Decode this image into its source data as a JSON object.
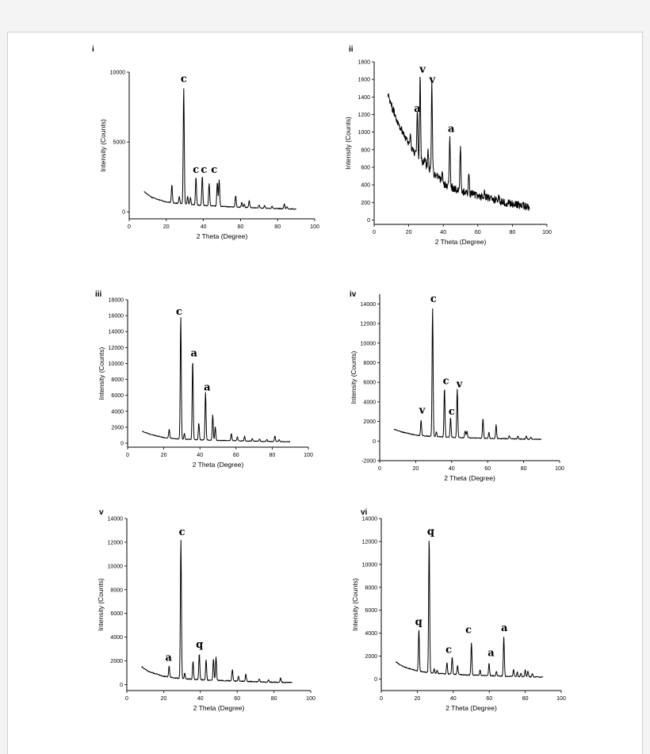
{
  "colors": {
    "trace": "#000000",
    "background": "#ffffff"
  },
  "chart_data": [
    {
      "id": "i",
      "type": "line",
      "panel_label": "i",
      "xlabel": "2 Theta (Degree)",
      "ylabel": "Intensity (Counts)",
      "xlim": [
        0,
        100
      ],
      "ylim": [
        -500,
        10000
      ],
      "xticks": [
        0,
        20,
        40,
        60,
        80,
        100
      ],
      "yticks": [
        0,
        5000,
        10000
      ],
      "background": {
        "points": [
          [
            8,
            1450
          ],
          [
            12,
            1050
          ],
          [
            20,
            700
          ],
          [
            30,
            550
          ],
          [
            45,
            420
          ],
          [
            60,
            330
          ],
          [
            75,
            250
          ],
          [
            90,
            200
          ]
        ],
        "noise": 30
      },
      "peaks": [
        [
          23,
          1300
        ],
        [
          27,
          500
        ],
        [
          29.4,
          8300
        ],
        [
          31.5,
          600
        ],
        [
          33,
          500
        ],
        [
          36,
          2000
        ],
        [
          39.4,
          2100
        ],
        [
          43.1,
          1600
        ],
        [
          47.5,
          1700
        ],
        [
          48.5,
          1900
        ],
        [
          57.4,
          800
        ],
        [
          60.7,
          350
        ],
        [
          62,
          250
        ],
        [
          64.7,
          500
        ],
        [
          70,
          200
        ],
        [
          73,
          200
        ],
        [
          77,
          150
        ],
        [
          83.6,
          350
        ],
        [
          85,
          150
        ]
      ],
      "annotations": [
        {
          "text": "c",
          "x": 29.4,
          "y": 9300
        },
        {
          "text": "c",
          "x": 36,
          "y": 2800
        },
        {
          "text": "c",
          "x": 40.3,
          "y": 2800
        },
        {
          "text": "c",
          "x": 45.8,
          "y": 2800
        }
      ]
    },
    {
      "id": "ii",
      "type": "line",
      "panel_label": "ii",
      "xlabel": "2 Theta (Degree)",
      "ylabel": "Intensity (Counts)",
      "xlim": [
        0,
        100
      ],
      "ylim": [
        -50,
        1800
      ],
      "xticks": [
        0,
        20,
        40,
        60,
        80,
        100
      ],
      "yticks": [
        0,
        200,
        400,
        600,
        800,
        1000,
        1200,
        1400,
        1600,
        1800
      ],
      "background": {
        "points": [
          [
            8,
            1450
          ],
          [
            10,
            1300
          ],
          [
            14,
            1100
          ],
          [
            18,
            950
          ],
          [
            22,
            800
          ],
          [
            26,
            700
          ],
          [
            30,
            620
          ],
          [
            35,
            520
          ],
          [
            40,
            420
          ],
          [
            45,
            370
          ],
          [
            50,
            330
          ],
          [
            55,
            300
          ],
          [
            60,
            280
          ],
          [
            65,
            250
          ],
          [
            70,
            230
          ],
          [
            80,
            180
          ],
          [
            90,
            150
          ]
        ],
        "noise": 45
      },
      "peaks": [
        [
          21,
          150
        ],
        [
          25,
          550
        ],
        [
          26.6,
          1000
        ],
        [
          29.5,
          100
        ],
        [
          31.2,
          200
        ],
        [
          33.4,
          1000
        ],
        [
          39.5,
          150
        ],
        [
          43.8,
          550
        ],
        [
          49.9,
          500
        ],
        [
          54.8,
          200
        ],
        [
          64,
          80
        ],
        [
          72,
          60
        ]
      ],
      "annotations": [
        {
          "text": "a",
          "x": 25,
          "y": 1230
        },
        {
          "text": "v",
          "x": 28,
          "y": 1680
        },
        {
          "text": "v",
          "x": 33.6,
          "y": 1560
        },
        {
          "text": "a",
          "x": 44.6,
          "y": 1000
        }
      ]
    },
    {
      "id": "iii",
      "type": "line",
      "panel_label": "iii",
      "xlabel": "2 Theta (Degree)",
      "ylabel": "Intensity (Counts)",
      "xlim": [
        0,
        100
      ],
      "ylim": [
        -500,
        18000
      ],
      "xticks": [
        0,
        20,
        40,
        60,
        80,
        100
      ],
      "yticks": [
        0,
        2000,
        4000,
        6000,
        8000,
        10000,
        12000,
        14000,
        16000,
        18000
      ],
      "background": {
        "points": [
          [
            8,
            1500
          ],
          [
            12,
            1150
          ],
          [
            20,
            700
          ],
          [
            30,
            500
          ],
          [
            45,
            380
          ],
          [
            60,
            300
          ],
          [
            75,
            220
          ],
          [
            90,
            180
          ]
        ],
        "noise": 40
      },
      "peaks": [
        [
          23,
          1100
        ],
        [
          29.4,
          15300
        ],
        [
          31.4,
          700
        ],
        [
          36,
          10000
        ],
        [
          39.4,
          2100
        ],
        [
          43.1,
          6000
        ],
        [
          47.1,
          3200
        ],
        [
          48.5,
          1700
        ],
        [
          57.4,
          900
        ],
        [
          60.7,
          500
        ],
        [
          64.7,
          600
        ],
        [
          69,
          300
        ],
        [
          73,
          300
        ],
        [
          77,
          250
        ],
        [
          81.5,
          700
        ],
        [
          83.8,
          250
        ]
      ],
      "annotations": [
        {
          "text": "c",
          "x": 28.5,
          "y": 16100
        },
        {
          "text": "a",
          "x": 36.7,
          "y": 10900
        },
        {
          "text": "a",
          "x": 44,
          "y": 6600
        }
      ]
    },
    {
      "id": "iv",
      "type": "line",
      "panel_label": "iv",
      "xlabel": "2 Theta (Degree)",
      "ylabel": "Intensity (Counts)",
      "xlim": [
        0,
        100
      ],
      "ylim": [
        -2000,
        15000
      ],
      "xticks": [
        0,
        20,
        40,
        60,
        80,
        100
      ],
      "yticks": [
        -2000,
        0,
        2000,
        4000,
        6000,
        8000,
        10000,
        12000,
        14000
      ],
      "background": {
        "points": [
          [
            8,
            1200
          ],
          [
            12,
            950
          ],
          [
            20,
            600
          ],
          [
            30,
            450
          ],
          [
            45,
            350
          ],
          [
            60,
            280
          ],
          [
            75,
            220
          ],
          [
            90,
            180
          ]
        ],
        "noise": 40
      },
      "peaks": [
        [
          23,
          1600
        ],
        [
          29.4,
          13100
        ],
        [
          31.5,
          500
        ],
        [
          36,
          5000
        ],
        [
          39.4,
          2000
        ],
        [
          43.1,
          4900
        ],
        [
          47.5,
          700
        ],
        [
          48.5,
          700
        ],
        [
          57.4,
          2000
        ],
        [
          60.7,
          600
        ],
        [
          64.7,
          1400
        ],
        [
          72,
          300
        ],
        [
          76.8,
          300
        ],
        [
          81.5,
          300
        ],
        [
          84,
          200
        ]
      ],
      "annotations": [
        {
          "text": "c",
          "x": 29.9,
          "y": 14200
        },
        {
          "text": "v",
          "x": 23.6,
          "y": 2800
        },
        {
          "text": "c",
          "x": 36.8,
          "y": 5800
        },
        {
          "text": "c",
          "x": 40,
          "y": 2700
        },
        {
          "text": "v",
          "x": 44.3,
          "y": 5500
        }
      ]
    },
    {
      "id": "v",
      "type": "line",
      "panel_label": "v",
      "xlabel": "2 Theta (Degree)",
      "ylabel": "Intensity (Counts)",
      "xlim": [
        0,
        100
      ],
      "ylim": [
        -500,
        14000
      ],
      "xticks": [
        0,
        20,
        40,
        60,
        80,
        100
      ],
      "yticks": [
        0,
        2000,
        4000,
        6000,
        8000,
        10000,
        12000,
        14000
      ],
      "background": {
        "points": [
          [
            8,
            1500
          ],
          [
            12,
            1100
          ],
          [
            20,
            700
          ],
          [
            30,
            500
          ],
          [
            45,
            380
          ],
          [
            60,
            300
          ],
          [
            75,
            220
          ],
          [
            90,
            180
          ]
        ],
        "noise": 40
      },
      "peaks": [
        [
          23,
          900
        ],
        [
          29.4,
          11700
        ],
        [
          31.5,
          500
        ],
        [
          36,
          1500
        ],
        [
          39.4,
          2200
        ],
        [
          43.1,
          1700
        ],
        [
          47.1,
          1800
        ],
        [
          48.5,
          2000
        ],
        [
          57.4,
          1000
        ],
        [
          60.7,
          400
        ],
        [
          64.7,
          600
        ],
        [
          72,
          250
        ],
        [
          77,
          200
        ],
        [
          83.6,
          400
        ]
      ],
      "annotations": [
        {
          "text": "c",
          "x": 30,
          "y": 12600
        },
        {
          "text": "a",
          "x": 22.7,
          "y": 2000
        },
        {
          "text": "q",
          "x": 39.5,
          "y": 3100
        }
      ]
    },
    {
      "id": "vi",
      "type": "line",
      "panel_label": "vi",
      "xlabel": "2 Theta (Degree)",
      "ylabel": "Intensity (Counts)",
      "xlim": [
        0,
        100
      ],
      "ylim": [
        -1000,
        14000
      ],
      "xticks": [
        0,
        20,
        40,
        60,
        80,
        100
      ],
      "yticks": [
        0,
        2000,
        4000,
        6000,
        8000,
        10000,
        12000,
        14000
      ],
      "background": {
        "points": [
          [
            8,
            1500
          ],
          [
            12,
            1100
          ],
          [
            20,
            700
          ],
          [
            30,
            500
          ],
          [
            45,
            380
          ],
          [
            60,
            300
          ],
          [
            75,
            220
          ],
          [
            90,
            180
          ]
        ],
        "noise": 40
      },
      "peaks": [
        [
          20.9,
          3600
        ],
        [
          26.6,
          11700
        ],
        [
          29.4,
          400
        ],
        [
          31,
          300
        ],
        [
          36.5,
          1000
        ],
        [
          39.4,
          1500
        ],
        [
          42.4,
          800
        ],
        [
          50.1,
          2800
        ],
        [
          54.9,
          500
        ],
        [
          59.9,
          1100
        ],
        [
          64,
          400
        ],
        [
          68.1,
          3400
        ],
        [
          73.5,
          600
        ],
        [
          75.6,
          400
        ],
        [
          77.6,
          300
        ],
        [
          80,
          600
        ],
        [
          81.5,
          500
        ],
        [
          84,
          300
        ]
      ],
      "annotations": [
        {
          "text": "q",
          "x": 27.5,
          "y": 12600
        },
        {
          "text": "q",
          "x": 20.8,
          "y": 4700
        },
        {
          "text": "c",
          "x": 37.5,
          "y": 2300
        },
        {
          "text": "c",
          "x": 48.5,
          "y": 4000
        },
        {
          "text": "a",
          "x": 61,
          "y": 2000
        },
        {
          "text": "a",
          "x": 68.4,
          "y": 4200
        }
      ]
    }
  ]
}
